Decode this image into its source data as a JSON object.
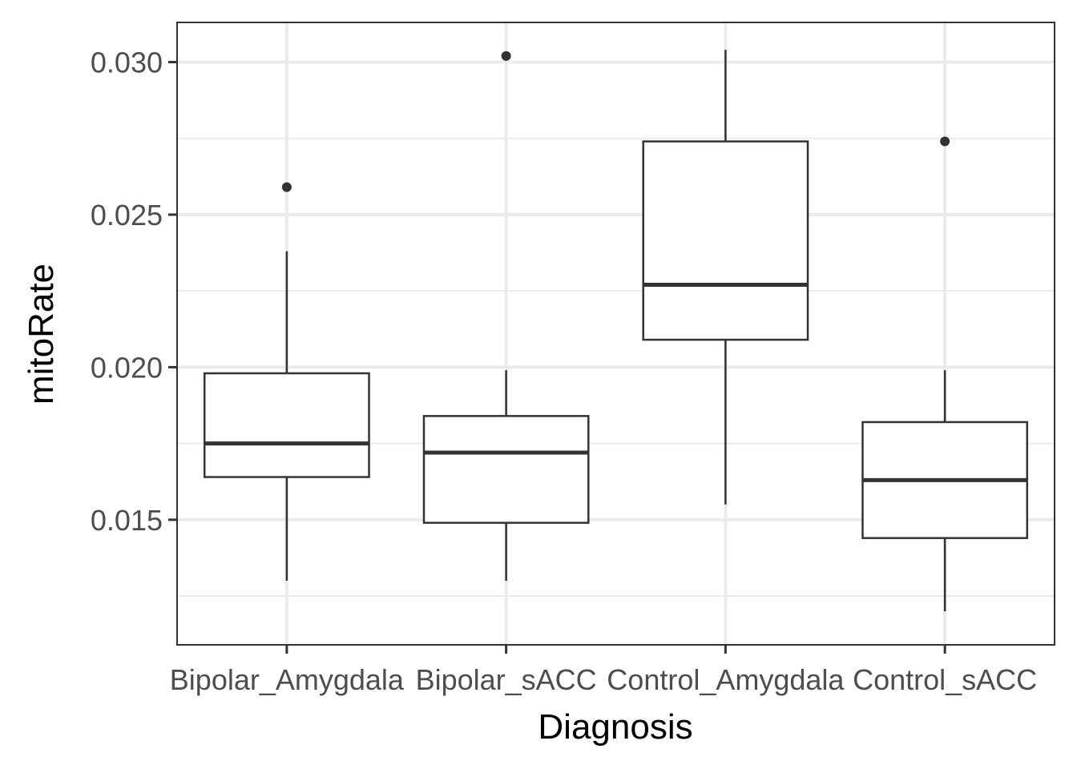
{
  "chart_data": {
    "type": "boxplot",
    "title": "",
    "xlabel": "Diagnosis",
    "ylabel": "mitoRate",
    "categories": [
      "Bipolar_Amygdala",
      "Bipolar_sACC",
      "Control_Amygdala",
      "Control_sACC"
    ],
    "boxes": [
      {
        "category": "Bipolar_Amygdala",
        "whisker_low": 0.013,
        "q1": 0.0164,
        "median": 0.0175,
        "q3": 0.0198,
        "whisker_high": 0.0238,
        "outliers": [
          0.0259
        ]
      },
      {
        "category": "Bipolar_sACC",
        "whisker_low": 0.013,
        "q1": 0.0149,
        "median": 0.0172,
        "q3": 0.0184,
        "whisker_high": 0.0199,
        "outliers": [
          0.0302
        ]
      },
      {
        "category": "Control_Amygdala",
        "whisker_low": 0.0155,
        "q1": 0.0209,
        "median": 0.0227,
        "q3": 0.0274,
        "whisker_high": 0.0304,
        "outliers": []
      },
      {
        "category": "Control_sACC",
        "whisker_low": 0.012,
        "q1": 0.0144,
        "median": 0.0163,
        "q3": 0.0182,
        "whisker_high": 0.0199,
        "outliers": [
          0.0274
        ]
      }
    ],
    "y_ticks": [
      0.015,
      0.02,
      0.025,
      0.03
    ],
    "y_tick_labels": [
      "0.015",
      "0.020",
      "0.025",
      "0.030"
    ],
    "y_minor_ticks": [
      0.0125,
      0.0175,
      0.0225,
      0.0275
    ],
    "ylim": [
      0.0109,
      0.0313
    ],
    "grid": true
  }
}
